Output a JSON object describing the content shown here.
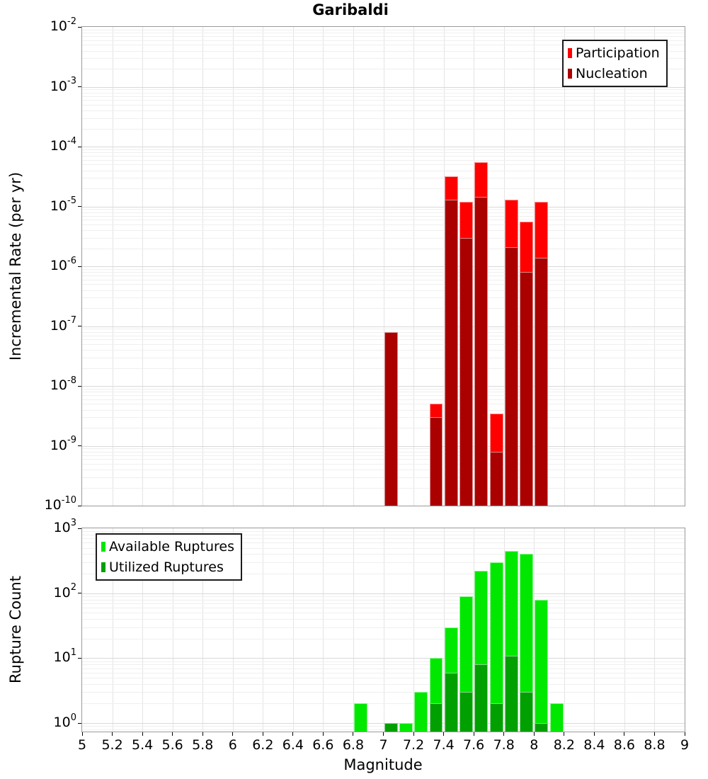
{
  "title": "Garibaldi",
  "x_axis": {
    "label": "Magnitude",
    "range": [
      5,
      9
    ],
    "tick_step": 0.2,
    "tick_labels": [
      "5",
      "5.2",
      "5.4",
      "5.6",
      "5.8",
      "6",
      "6.2",
      "6.4",
      "6.6",
      "6.8",
      "7",
      "7.2",
      "7.4",
      "7.6",
      "7.8",
      "8",
      "8.2",
      "8.4",
      "8.6",
      "8.8",
      "9"
    ]
  },
  "chart_data": [
    {
      "type": "bar",
      "id": "incremental-rate-chart",
      "ylabel": "Incremental Rate (per yr)",
      "yscale": "log",
      "ylim": [
        1e-10,
        0.01
      ],
      "ytick_exponents": [
        -2,
        -3,
        -4,
        -5,
        -6,
        -7,
        -8,
        -9,
        -10
      ],
      "grid": true,
      "bin_width": 0.1,
      "bins": [
        7.0,
        7.3,
        7.4,
        7.5,
        7.6,
        7.7,
        7.8,
        7.9,
        8.0
      ],
      "series": [
        {
          "name": "Participation",
          "color": "#ff0000",
          "values": [
            8e-08,
            5e-09,
            3.2e-05,
            1.2e-05,
            5.5e-05,
            3.5e-09,
            1.3e-05,
            5.5e-06,
            1.2e-05
          ]
        },
        {
          "name": "Nucleation",
          "color": "#aa0000",
          "values": [
            8e-08,
            3e-09,
            1.3e-05,
            3e-06,
            1.45e-05,
            8e-10,
            2.1e-06,
            8e-07,
            1.4e-06
          ]
        }
      ],
      "legend_position": "top-right"
    },
    {
      "type": "bar",
      "id": "rupture-count-chart",
      "ylabel": "Rupture Count",
      "yscale": "log",
      "ylim": [
        0.74,
        1000
      ],
      "ytick_exponents": [
        3,
        2,
        1,
        0
      ],
      "grid": true,
      "bin_width": 0.1,
      "bins": [
        6.8,
        7.0,
        7.1,
        7.2,
        7.3,
        7.4,
        7.5,
        7.6,
        7.7,
        7.8,
        7.9,
        8.0,
        8.1
      ],
      "series": [
        {
          "name": "Available Ruptures",
          "color": "#00e800",
          "values": [
            2,
            1,
            1,
            3,
            10,
            30,
            90,
            220,
            300,
            450,
            400,
            80,
            2
          ]
        },
        {
          "name": "Utilized Ruptures",
          "color": "#00a000",
          "values": [
            0,
            1,
            0,
            0,
            2,
            6,
            3,
            8,
            2,
            11,
            3,
            1,
            0
          ]
        }
      ],
      "legend_position": "top-left"
    }
  ]
}
